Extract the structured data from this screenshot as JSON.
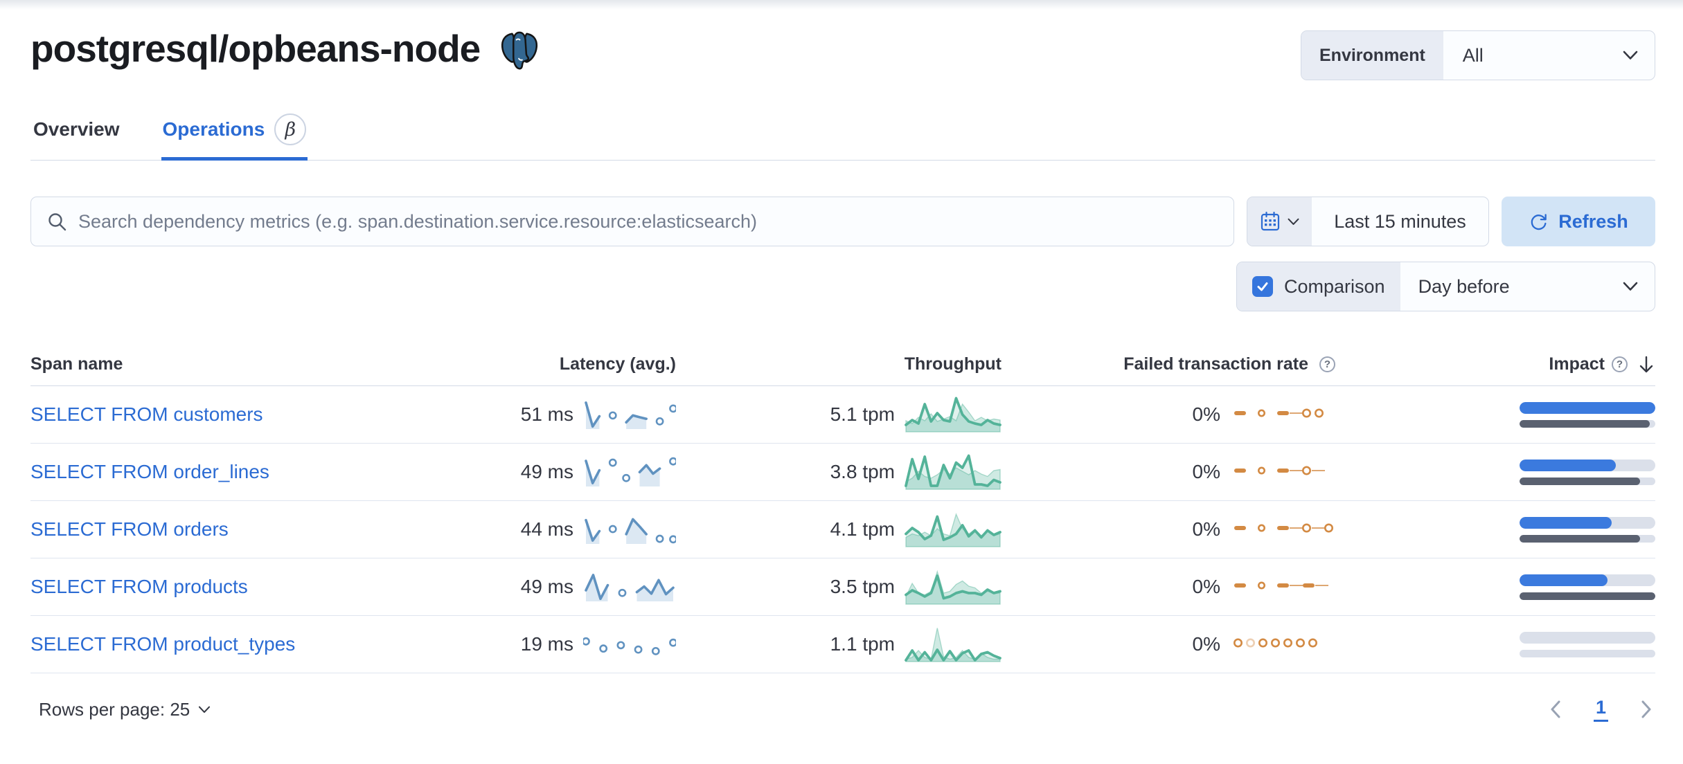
{
  "header": {
    "title": "postgresql/opbeans-node"
  },
  "environment": {
    "label": "Environment",
    "value": "All"
  },
  "tabs": {
    "overview": "Overview",
    "operations": "Operations",
    "beta_badge": "β"
  },
  "search": {
    "placeholder": "Search dependency metrics (e.g. span.destination.service.resource:elasticsearch)"
  },
  "time": {
    "range": "Last 15 minutes",
    "refresh_label": "Refresh"
  },
  "comparison": {
    "label": "Comparison",
    "checked": true,
    "value": "Day before"
  },
  "table": {
    "headers": {
      "span_name": "Span name",
      "latency": "Latency (avg.)",
      "throughput": "Throughput",
      "failed_rate": "Failed transaction rate",
      "impact": "Impact"
    },
    "rows": [
      {
        "span_name": "SELECT FROM customers",
        "latency": "51 ms",
        "throughput": "5.1 tpm",
        "failed_rate": "0%",
        "latency_spark": [
          0.95,
          0.02,
          0.42,
          null,
          0.45,
          null,
          0.18,
          0.45,
          0.38,
          0.32,
          null,
          0.22,
          null,
          0.72
        ],
        "throughput_spark": {
          "current": [
            0.18,
            0.32,
            0.22,
            0.78,
            0.28,
            0.52,
            0.32,
            0.28,
            0.95,
            0.48,
            0.28,
            0.22,
            0.18,
            0.32,
            0.22,
            0.18
          ],
          "previous": [
            0.3,
            0.22,
            0.4,
            0.3,
            0.5,
            0.28,
            0.35,
            0.42,
            0.3,
            0.78,
            0.55,
            0.3,
            0.4,
            0.3,
            0.35,
            0.32
          ]
        },
        "failed_spark": [
          "dash",
          "gap",
          "dot",
          "gap",
          "dash",
          "link",
          "circle",
          "circle"
        ],
        "impact": {
          "current": 100,
          "previous": 96
        }
      },
      {
        "span_name": "SELECT FROM order_lines",
        "latency": "49 ms",
        "throughput": "3.8 tpm",
        "failed_rate": "0%",
        "latency_spark": [
          0.92,
          0.05,
          0.55,
          null,
          0.85,
          null,
          0.25,
          null,
          0.48,
          0.75,
          0.42,
          0.62,
          null,
          0.9
        ],
        "throughput_spark": {
          "current": [
            0.08,
            0.85,
            0.28,
            0.92,
            0.08,
            0.08,
            0.68,
            0.3,
            0.75,
            0.6,
            0.95,
            0.12,
            0.12,
            0.08,
            0.25,
            0.18
          ],
          "previous": [
            0.2,
            0.3,
            0.5,
            0.35,
            0.3,
            0.4,
            0.55,
            0.42,
            0.6,
            0.5,
            0.4,
            0.52,
            0.42,
            0.35,
            0.52,
            0.55
          ]
        },
        "failed_spark": [
          "dash",
          "gap",
          "dot",
          "gap",
          "dash",
          "link",
          "circle",
          "link"
        ],
        "impact": {
          "current": 71,
          "previous": 89
        }
      },
      {
        "span_name": "SELECT FROM orders",
        "latency": "44 ms",
        "throughput": "4.1 tpm",
        "failed_rate": "0%",
        "latency_spark": [
          0.85,
          0.05,
          0.42,
          null,
          0.5,
          null,
          0.3,
          0.88,
          0.6,
          0.3,
          null,
          0.12,
          null,
          0.1
        ],
        "throughput_spark": {
          "current": [
            0.35,
            0.52,
            0.4,
            0.2,
            0.3,
            0.85,
            0.18,
            0.25,
            0.35,
            0.6,
            0.28,
            0.45,
            0.25,
            0.45,
            0.32,
            0.4
          ],
          "previous": [
            0.25,
            0.35,
            0.3,
            0.4,
            0.3,
            0.5,
            0.35,
            0.3,
            0.92,
            0.5,
            0.35,
            0.48,
            0.3,
            0.42,
            0.3,
            0.35
          ]
        },
        "failed_spark": [
          "dash",
          "gap",
          "dot",
          "gap",
          "dash",
          "link",
          "circle",
          "link",
          "circle"
        ],
        "impact": {
          "current": 68,
          "previous": 89
        }
      },
      {
        "span_name": "SELECT FROM products",
        "latency": "49 ms",
        "throughput": "3.5 tpm",
        "failed_rate": "0%",
        "latency_spark": [
          0.35,
          0.95,
          0.02,
          0.55,
          null,
          0.25,
          null,
          0.28,
          0.5,
          0.22,
          0.75,
          0.2,
          0.45
        ],
        "throughput_spark": {
          "current": [
            0.25,
            0.38,
            0.3,
            0.2,
            0.3,
            0.8,
            0.15,
            0.2,
            0.3,
            0.35,
            0.3,
            0.3,
            0.25,
            0.4,
            0.3,
            0.35
          ],
          "previous": [
            0.2,
            0.58,
            0.3,
            0.25,
            0.35,
            0.92,
            0.3,
            0.35,
            0.55,
            0.65,
            0.5,
            0.45,
            0.3,
            0.35,
            0.3,
            0.3
          ]
        },
        "failed_spark": [
          "dash",
          "gap",
          "dot",
          "gap",
          "dash",
          "link",
          "dash",
          "link"
        ],
        "impact": {
          "current": 65,
          "previous": 100
        }
      },
      {
        "span_name": "SELECT FROM product_types",
        "latency": "19 ms",
        "throughput": "1.1 tpm",
        "failed_rate": "0%",
        "latency_spark": [
          0.6,
          null,
          0.32,
          null,
          0.45,
          null,
          0.28,
          null,
          0.22,
          null,
          0.55
        ],
        "throughput_spark": {
          "current": [
            0.02,
            0.3,
            0.02,
            0.25,
            0.02,
            0.32,
            0.02,
            0.28,
            0.02,
            0.22,
            0.3,
            0.02,
            0.2,
            0.25,
            0.15,
            0.08
          ],
          "previous": [
            0.05,
            0.1,
            0.3,
            0.1,
            0.05,
            0.95,
            0.12,
            0.05,
            0.1,
            0.3,
            0.1,
            0.05,
            0.22,
            0.1,
            0.05,
            0.05
          ]
        },
        "failed_spark": [
          "circle",
          "circle-faint",
          "circle",
          "circle",
          "circle",
          "circle",
          "circle"
        ],
        "impact": {
          "current": 0,
          "previous": 0
        }
      }
    ]
  },
  "footer": {
    "rows_per_page": "Rows per page: 25",
    "current_page": "1"
  },
  "colors": {
    "primary": "#2b6bd3",
    "latency_spark": "#6092c0",
    "throughput_spark": "#54b399",
    "failed_spark": "#d38a43",
    "impact_current": "#3b7ade",
    "impact_previous": "#5a6170"
  }
}
